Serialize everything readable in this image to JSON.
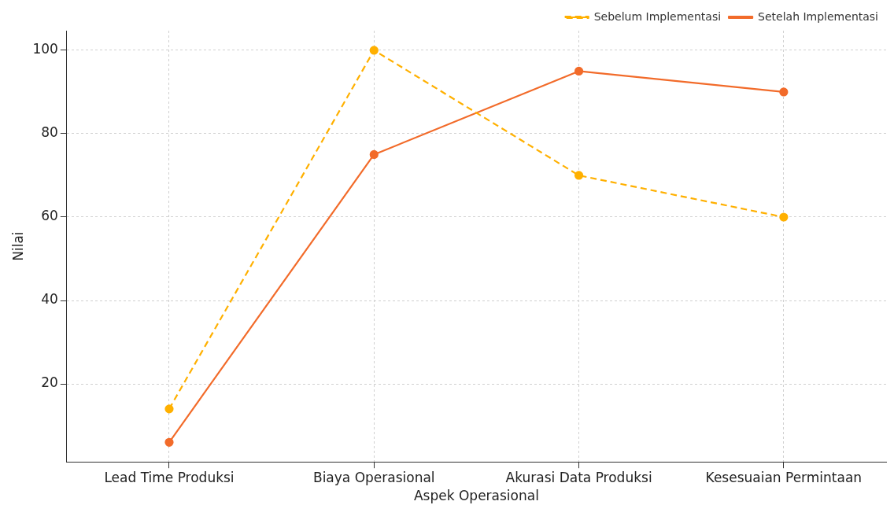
{
  "chart_data": {
    "type": "line",
    "xlabel": "Aspek Operasional",
    "ylabel": "Nilai",
    "categories": [
      "Lead Time Produksi",
      "Biaya Operasional",
      "Akurasi Data Produksi",
      "Kesesuaian Permintaan"
    ],
    "series": [
      {
        "name": "Sebelum Implementasi",
        "color": "#ffb000",
        "line_style": "dashed",
        "values": [
          14,
          100,
          70,
          60
        ]
      },
      {
        "name": "Setelah Implementasi",
        "color": "#f26b2a",
        "line_style": "solid",
        "values": [
          6,
          75,
          95,
          90
        ]
      }
    ],
    "ylim": [
      1.3,
      104.7
    ],
    "yticks": [
      20,
      40,
      60,
      80,
      100
    ],
    "grid": true,
    "legend": "top right",
    "marker": "circle"
  }
}
